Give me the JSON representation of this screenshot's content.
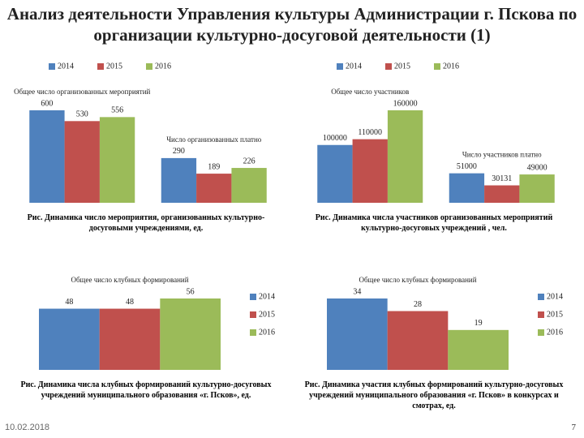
{
  "title": "Анализ деятельности Управления культуры Администрации г. Пскова по организации культурно-досуговой деятельности (1)",
  "chart_data": [
    {
      "type": "bar",
      "legend": "top",
      "categories": [
        "Общее число организованных мероприятий",
        "Число организованных платно"
      ],
      "series": [
        {
          "name": "2014",
          "color": "#4f81bd",
          "values": [
            600,
            290
          ]
        },
        {
          "name": "2015",
          "color": "#c0504d",
          "values": [
            530,
            189
          ]
        },
        {
          "name": "2016",
          "color": "#9bbb59",
          "values": [
            556,
            226
          ]
        }
      ],
      "caption": "Рис. Динамика число мероприятия, организованных культурно-досуговыми учреждениями, ед."
    },
    {
      "type": "bar",
      "legend": "top",
      "categories": [
        "Общее число участников",
        "Число участников платно"
      ],
      "series": [
        {
          "name": "2014",
          "color": "#4f81bd",
          "values": [
            100000,
            51000
          ]
        },
        {
          "name": "2015",
          "color": "#c0504d",
          "values": [
            110000,
            30131
          ]
        },
        {
          "name": "2016",
          "color": "#9bbb59",
          "values": [
            160000,
            49000
          ]
        }
      ],
      "caption": "Рис. Динамика числа участников организованных мероприятий культурно-досуговых учреждений , чел."
    },
    {
      "type": "bar",
      "legend": "right",
      "categories": [
        "Общее число клубных формирований"
      ],
      "series": [
        {
          "name": "2014",
          "color": "#4f81bd",
          "values": [
            48
          ]
        },
        {
          "name": "2015",
          "color": "#c0504d",
          "values": [
            48
          ]
        },
        {
          "name": "2016",
          "color": "#9bbb59",
          "values": [
            56
          ]
        }
      ],
      "caption": "Рис. Динамика числа клубных формирований культурно-досуговых учреждений муниципального образования «г. Псков», ед."
    },
    {
      "type": "bar",
      "legend": "right",
      "categories": [
        "Общее число клубных формирований"
      ],
      "series": [
        {
          "name": "2014",
          "color": "#4f81bd",
          "values": [
            34
          ]
        },
        {
          "name": "2015",
          "color": "#c0504d",
          "values": [
            28
          ]
        },
        {
          "name": "2016",
          "color": "#9bbb59",
          "values": [
            19
          ]
        }
      ],
      "caption": "Рис. Динамика участия клубных формирований культурно-досуговых учреждений муниципального образования «г. Псков» в конкурсах и смотрах, ед."
    }
  ],
  "footer": {
    "date": "10.02.2018",
    "page": "7"
  }
}
